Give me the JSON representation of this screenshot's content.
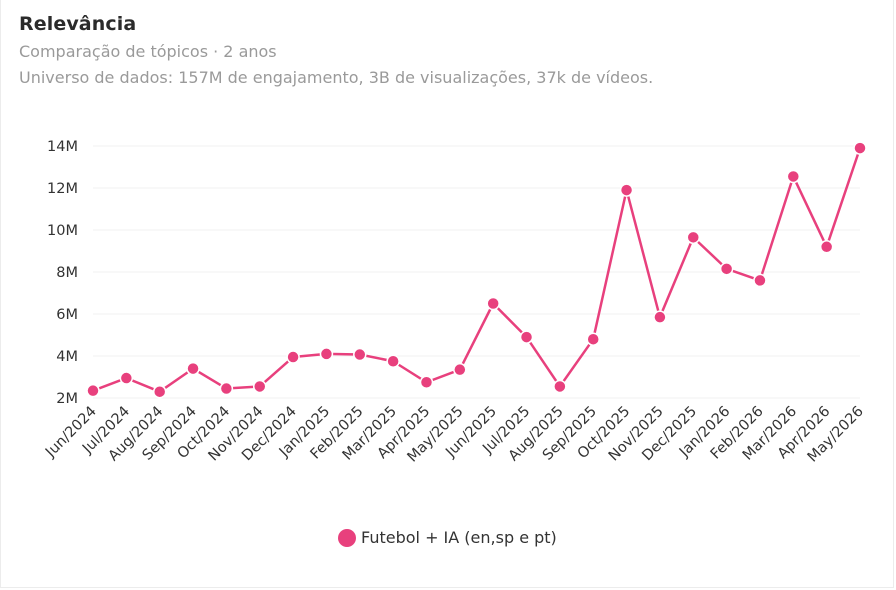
{
  "header": {
    "title": "Relevância",
    "subtitle": "Comparação de tópicos · 2 anos",
    "universe": "Universo de dados: 157M de engajamento, 3B de visualizações, 37k de vídeos."
  },
  "colors": {
    "series": "#e8407d",
    "grid": "#f0f0f0",
    "title": "#2b2b2b",
    "muted": "#9a9a9a"
  },
  "chart_data": {
    "type": "line",
    "title": "Relevância",
    "subtitle": "Comparação de tópicos · 2 anos",
    "xlabel": "",
    "ylabel": "",
    "categories": [
      "Jun/2024",
      "Jul/2024",
      "Aug/2024",
      "Sep/2024",
      "Oct/2024",
      "Nov/2024",
      "Dec/2024",
      "Jan/2025",
      "Feb/2025",
      "Mar/2025",
      "Apr/2025",
      "May/2025",
      "Jun/2025",
      "Jul/2025",
      "Aug/2025",
      "Sep/2025",
      "Oct/2025",
      "Nov/2025",
      "Dec/2025",
      "Jan/2026",
      "Feb/2026",
      "Mar/2026",
      "Apr/2026",
      "May/2026"
    ],
    "series": [
      {
        "name": "Futebol + IA (en,sp e pt)",
        "values": [
          2.35,
          2.95,
          2.3,
          3.4,
          2.45,
          2.55,
          3.95,
          4.1,
          4.07,
          3.75,
          2.75,
          3.35,
          6.5,
          4.9,
          2.55,
          4.8,
          11.9,
          5.85,
          9.65,
          8.15,
          7.6,
          12.55,
          9.2,
          13.9
        ]
      }
    ],
    "ylim": [
      2,
      14
    ],
    "yticks": [
      2,
      4,
      6,
      8,
      10,
      12,
      14
    ],
    "ytick_labels": [
      "2M",
      "4M",
      "6M",
      "8M",
      "10M",
      "12M",
      "14M"
    ],
    "grid": true,
    "legend_position": "bottom-center"
  }
}
